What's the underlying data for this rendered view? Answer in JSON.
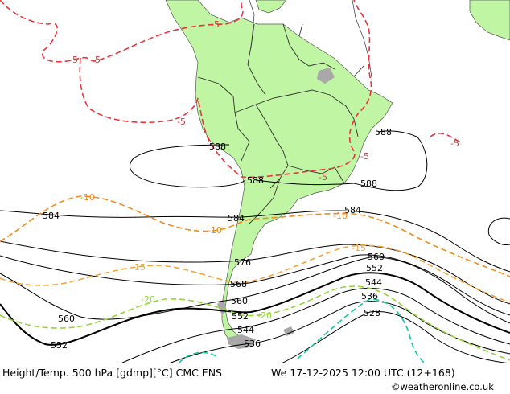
{
  "map": {
    "colors": {
      "ocean": "#ffffff",
      "land": "#bff5a3",
      "land_grey": "#a8a8a8",
      "height_contour": "#000000",
      "temp_red": "#e8343a",
      "temp_orange": "#f08c1e",
      "temp_lightorange": "#f2a43a",
      "temp_green": "#92d63a",
      "temp_teal": "#12c8a0",
      "borders": "#333333"
    },
    "height_labels": [
      {
        "text": "588",
        "key": "h1"
      },
      {
        "text": "588",
        "key": "h2"
      },
      {
        "text": "588",
        "key": "h3"
      },
      {
        "text": "588",
        "key": "h4"
      },
      {
        "text": "584",
        "key": "h5"
      },
      {
        "text": "584",
        "key": "h6"
      },
      {
        "text": "584",
        "key": "h7"
      },
      {
        "text": "576",
        "key": "h8"
      },
      {
        "text": "568",
        "key": "h9"
      },
      {
        "text": "560",
        "key": "h10"
      },
      {
        "text": "560",
        "key": "h11"
      },
      {
        "text": "560",
        "key": "h12"
      },
      {
        "text": "552",
        "key": "h13"
      },
      {
        "text": "552",
        "key": "h14"
      },
      {
        "text": "552",
        "key": "h15"
      },
      {
        "text": "544",
        "key": "h16"
      },
      {
        "text": "544",
        "key": "h17"
      },
      {
        "text": "536",
        "key": "h18"
      },
      {
        "text": "536",
        "key": "h19"
      },
      {
        "text": "528",
        "key": "h20"
      }
    ],
    "temp_labels": [
      {
        "text": "-5",
        "key": "t1"
      },
      {
        "text": "-5",
        "key": "t2"
      },
      {
        "text": "-5",
        "key": "t3"
      },
      {
        "text": "-5",
        "key": "t4"
      },
      {
        "text": "-5",
        "key": "t5"
      },
      {
        "text": "-5",
        "key": "t6"
      },
      {
        "text": "-5",
        "key": "t7"
      },
      {
        "text": "-10",
        "key": "t8"
      },
      {
        "text": "-10",
        "key": "t9"
      },
      {
        "text": "-10",
        "key": "t10"
      },
      {
        "text": "-15",
        "key": "t11"
      },
      {
        "text": "-15",
        "key": "t12"
      },
      {
        "text": "-20",
        "key": "t13"
      },
      {
        "text": "-20",
        "key": "t14"
      }
    ]
  },
  "footer": {
    "title": "Height/Temp. 500 hPa [gdmp][°C] CMC ENS",
    "datetime": "We 17-12-2025 12:00 UTC (12+168)",
    "credit": "©weatheronline.co.uk"
  }
}
